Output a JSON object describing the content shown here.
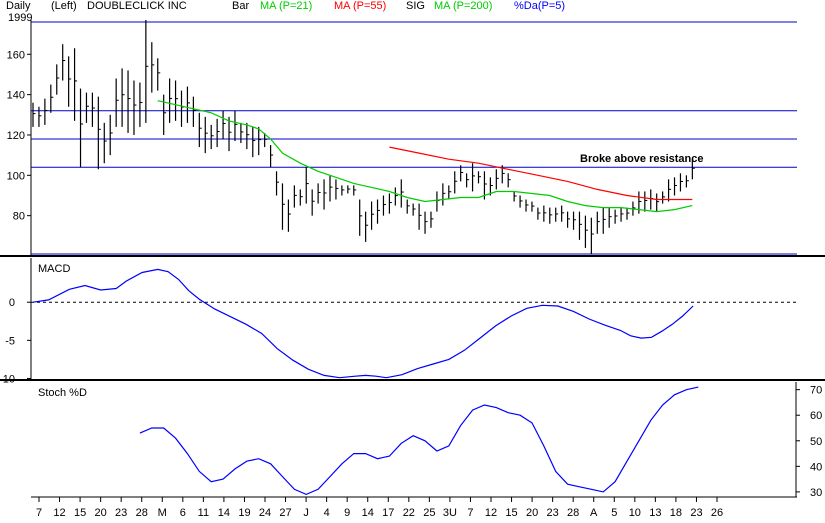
{
  "header": {
    "period": "Daily",
    "year": "1999",
    "scale_side": "(Left)",
    "ticker_name": "DOUBLECLICK INC",
    "legend": [
      {
        "label": "Bar",
        "color": "#000000"
      },
      {
        "label": "MA (P=21)",
        "color": "#00cc00"
      },
      {
        "label": "MA (P=55)",
        "color": "#ff0000"
      },
      {
        "label": "SIG",
        "color": "#000000"
      },
      {
        "label": "MA (P=200)",
        "color": "#00cc00"
      },
      {
        "label": "%Da(P=5)",
        "color": "#0000ff"
      }
    ]
  },
  "colors": {
    "frame": "#000000",
    "resistance": "#0000cc",
    "ma21": "#00cc00",
    "ma55": "#ff0000",
    "indicator": "#0000ff"
  },
  "x_axis_labels": [
    "7",
    "12",
    "15",
    "20",
    "23",
    "28",
    "M",
    "6",
    "11",
    "14",
    "19",
    "24",
    "27",
    "J",
    "4",
    "9",
    "14",
    "17",
    "22",
    "25",
    "3U",
    "7",
    "12",
    "15",
    "20",
    "23",
    "28",
    "A",
    "5",
    "10",
    "13",
    "18",
    "23",
    "26"
  ],
  "chart_data": [
    {
      "type": "bar",
      "panel": "price",
      "ylim": [
        60,
        177
      ],
      "yticks": [
        80,
        100,
        120,
        140,
        160
      ],
      "resistance_lines": [
        176,
        132,
        118,
        104,
        61
      ],
      "annotation": "Broke above resistance",
      "bars": [
        [
          0,
          136,
          124
        ],
        [
          1,
          134,
          124
        ],
        [
          2,
          138,
          125
        ],
        [
          3,
          145,
          131
        ],
        [
          4,
          155,
          140
        ],
        [
          5,
          165,
          147
        ],
        [
          6,
          159,
          134
        ],
        [
          7,
          163,
          127
        ],
        [
          8,
          143,
          104
        ],
        [
          9,
          141,
          126
        ],
        [
          10,
          141,
          124
        ],
        [
          11,
          139,
          103
        ],
        [
          12,
          126,
          106
        ],
        [
          13,
          130,
          110
        ],
        [
          14,
          148,
          124
        ],
        [
          15,
          153,
          124
        ],
        [
          16,
          152,
          121
        ],
        [
          17,
          147,
          120
        ],
        [
          18,
          146,
          124
        ],
        [
          19,
          177,
          126
        ],
        [
          20,
          166,
          141
        ],
        [
          21,
          158,
          142
        ],
        [
          22,
          140,
          120
        ],
        [
          23,
          148,
          126
        ],
        [
          24,
          147,
          127
        ],
        [
          25,
          142,
          124
        ],
        [
          26,
          144,
          126
        ],
        [
          27,
          139,
          124
        ],
        [
          28,
          131,
          114
        ],
        [
          29,
          129,
          111
        ],
        [
          30,
          125,
          113
        ],
        [
          31,
          128,
          114
        ],
        [
          32,
          132,
          118
        ],
        [
          33,
          129,
          112
        ],
        [
          34,
          132,
          117
        ],
        [
          35,
          126,
          116
        ],
        [
          36,
          126,
          113
        ],
        [
          37,
          124,
          109
        ],
        [
          38,
          124,
          110
        ],
        [
          39,
          121,
          114
        ],
        [
          40,
          115,
          104
        ],
        [
          41,
          102,
          90
        ],
        [
          42,
          96,
          73
        ],
        [
          43,
          88,
          72
        ],
        [
          44,
          95,
          84
        ],
        [
          45,
          93,
          85
        ],
        [
          46,
          104,
          86
        ],
        [
          47,
          93,
          80
        ],
        [
          48,
          96,
          86
        ],
        [
          49,
          98,
          83
        ],
        [
          50,
          100,
          87
        ],
        [
          51,
          98,
          88
        ],
        [
          52,
          95,
          90
        ],
        [
          53,
          95,
          91
        ],
        [
          54,
          95,
          90
        ],
        [
          55,
          88,
          70
        ],
        [
          56,
          82,
          67
        ],
        [
          57,
          87,
          73
        ],
        [
          58,
          88,
          76
        ],
        [
          59,
          90,
          80
        ],
        [
          60,
          91,
          81
        ],
        [
          61,
          94,
          85
        ],
        [
          62,
          98,
          84
        ],
        [
          63,
          88,
          81
        ],
        [
          64,
          86,
          80
        ],
        [
          65,
          86,
          73
        ],
        [
          66,
          82,
          71
        ],
        [
          67,
          82,
          74
        ],
        [
          68,
          92,
          82
        ],
        [
          69,
          96,
          85
        ],
        [
          70,
          95,
          88
        ],
        [
          71,
          102,
          91
        ],
        [
          72,
          105,
          97
        ],
        [
          73,
          101,
          94
        ],
        [
          74,
          106,
          92
        ],
        [
          75,
          102,
          96
        ],
        [
          76,
          102,
          88
        ],
        [
          77,
          99,
          90
        ],
        [
          78,
          103,
          93
        ],
        [
          79,
          105,
          96
        ],
        [
          80,
          101,
          94
        ],
        [
          81,
          92,
          87
        ],
        [
          82,
          90,
          84
        ],
        [
          83,
          88,
          82
        ],
        [
          84,
          87,
          82
        ],
        [
          85,
          84,
          78
        ],
        [
          86,
          85,
          77
        ],
        [
          87,
          84,
          76
        ],
        [
          88,
          84,
          77
        ],
        [
          89,
          85,
          77
        ],
        [
          90,
          82,
          74
        ],
        [
          91,
          82,
          73
        ],
        [
          92,
          82,
          68
        ],
        [
          93,
          80,
          64
        ],
        [
          94,
          79,
          61
        ],
        [
          95,
          82,
          71
        ],
        [
          96,
          84,
          71
        ],
        [
          97,
          84,
          74
        ],
        [
          98,
          83,
          76
        ],
        [
          99,
          84,
          77
        ],
        [
          100,
          84,
          78
        ],
        [
          101,
          87,
          80
        ],
        [
          102,
          92,
          81
        ],
        [
          103,
          92,
          82
        ],
        [
          104,
          93,
          83
        ],
        [
          105,
          91,
          82
        ],
        [
          106,
          92,
          86
        ],
        [
          107,
          98,
          87
        ],
        [
          108,
          99,
          90
        ],
        [
          109,
          101,
          92
        ],
        [
          110,
          100,
          94
        ],
        [
          111,
          108,
          98
        ]
      ],
      "series": [
        {
          "name": "MA (P=21)",
          "color": "#00cc00",
          "values": [
            [
              21,
              137
            ],
            [
              24,
              135
            ],
            [
              27,
              133
            ],
            [
              30,
              131
            ],
            [
              33,
              127
            ],
            [
              36,
              125
            ],
            [
              38,
              123
            ],
            [
              40,
              118
            ],
            [
              42,
              111
            ],
            [
              45,
              106
            ],
            [
              48,
              102
            ],
            [
              51,
              99
            ],
            [
              54,
              96
            ],
            [
              57,
              94
            ],
            [
              60,
              92
            ],
            [
              63,
              89
            ],
            [
              66,
              87
            ],
            [
              69,
              88
            ],
            [
              72,
              89
            ],
            [
              75,
              89
            ],
            [
              78,
              92
            ],
            [
              81,
              92
            ],
            [
              84,
              91
            ],
            [
              87,
              90
            ],
            [
              90,
              87
            ],
            [
              93,
              85
            ],
            [
              96,
              84
            ],
            [
              99,
              84
            ],
            [
              102,
              83
            ],
            [
              105,
              82
            ],
            [
              108,
              83
            ],
            [
              111,
              85
            ]
          ]
        },
        {
          "name": "MA (P=55)",
          "color": "#ff0000",
          "values": [
            [
              60,
              114
            ],
            [
              65,
              111
            ],
            [
              70,
              108
            ],
            [
              75,
              106
            ],
            [
              80,
              103
            ],
            [
              85,
              100
            ],
            [
              90,
              97
            ],
            [
              95,
              93
            ],
            [
              100,
              90
            ],
            [
              105,
              88
            ],
            [
              111,
              88
            ]
          ]
        }
      ]
    },
    {
      "type": "line",
      "panel": "macd",
      "title": "MACD",
      "ylim": [
        -10.2,
        5.8
      ],
      "yticks": [
        0,
        -5,
        -10
      ],
      "zero_line": 0,
      "values": [
        [
          0,
          0
        ],
        [
          3,
          0.3
        ],
        [
          7,
          1.7
        ],
        [
          10,
          2.2
        ],
        [
          13,
          1.6
        ],
        [
          16,
          1.8
        ],
        [
          18,
          2.8
        ],
        [
          21,
          3.9
        ],
        [
          24,
          4.3
        ],
        [
          26,
          4.0
        ],
        [
          28,
          3
        ],
        [
          30,
          1.5
        ],
        [
          32,
          0.4
        ],
        [
          35,
          -0.9
        ],
        [
          38,
          -1.9
        ],
        [
          41,
          -2.9
        ],
        [
          44,
          -4.1
        ],
        [
          47,
          -6.1
        ],
        [
          50,
          -7.6
        ],
        [
          53,
          -8.8
        ],
        [
          56,
          -9.6
        ],
        [
          59,
          -9.9
        ],
        [
          62,
          -9.7
        ],
        [
          64,
          -9.6
        ],
        [
          66,
          -9.7
        ],
        [
          68,
          -9.9
        ],
        [
          71,
          -9.5
        ],
        [
          74,
          -8.7
        ],
        [
          77,
          -8.1
        ],
        [
          80,
          -7.5
        ],
        [
          83,
          -6.3
        ],
        [
          86,
          -4.7
        ],
        [
          89,
          -3.1
        ],
        [
          92,
          -1.8
        ],
        [
          95,
          -0.8
        ],
        [
          98,
          -0.4
        ],
        [
          101,
          -0.5
        ],
        [
          104,
          -1.2
        ],
        [
          107,
          -2.2
        ],
        [
          110,
          -3.0
        ],
        [
          113,
          -3.7
        ],
        [
          115,
          -4.4
        ],
        [
          117,
          -4.7
        ],
        [
          119,
          -4.6
        ],
        [
          121,
          -3.8
        ],
        [
          123,
          -2.9
        ],
        [
          125,
          -1.8
        ],
        [
          127,
          -0.5
        ]
      ]
    },
    {
      "type": "line",
      "panel": "stoch",
      "title": "Stoch %D",
      "ylim": [
        28,
        73
      ],
      "yticks": [
        70,
        60,
        50,
        40,
        30
      ],
      "values": [
        [
          18,
          53
        ],
        [
          20,
          55
        ],
        [
          22,
          55
        ],
        [
          24,
          51
        ],
        [
          26,
          45
        ],
        [
          28,
          38
        ],
        [
          30,
          34
        ],
        [
          32,
          35
        ],
        [
          34,
          39
        ],
        [
          36,
          42
        ],
        [
          38,
          43
        ],
        [
          40,
          41
        ],
        [
          42,
          36
        ],
        [
          44,
          31
        ],
        [
          46,
          29
        ],
        [
          48,
          31
        ],
        [
          50,
          36
        ],
        [
          52,
          41
        ],
        [
          54,
          45
        ],
        [
          56,
          45
        ],
        [
          58,
          43
        ],
        [
          60,
          44
        ],
        [
          62,
          49
        ],
        [
          64,
          52
        ],
        [
          66,
          50
        ],
        [
          68,
          46
        ],
        [
          70,
          48
        ],
        [
          72,
          56
        ],
        [
          74,
          62
        ],
        [
          76,
          64
        ],
        [
          78,
          63
        ],
        [
          80,
          61
        ],
        [
          82,
          60
        ],
        [
          84,
          57
        ],
        [
          86,
          48
        ],
        [
          88,
          38
        ],
        [
          90,
          33
        ],
        [
          92,
          32
        ],
        [
          94,
          31
        ],
        [
          96,
          30
        ],
        [
          98,
          34
        ],
        [
          100,
          42
        ],
        [
          102,
          50
        ],
        [
          104,
          58
        ],
        [
          106,
          64
        ],
        [
          108,
          68
        ],
        [
          110,
          70
        ],
        [
          112,
          71
        ]
      ]
    }
  ]
}
